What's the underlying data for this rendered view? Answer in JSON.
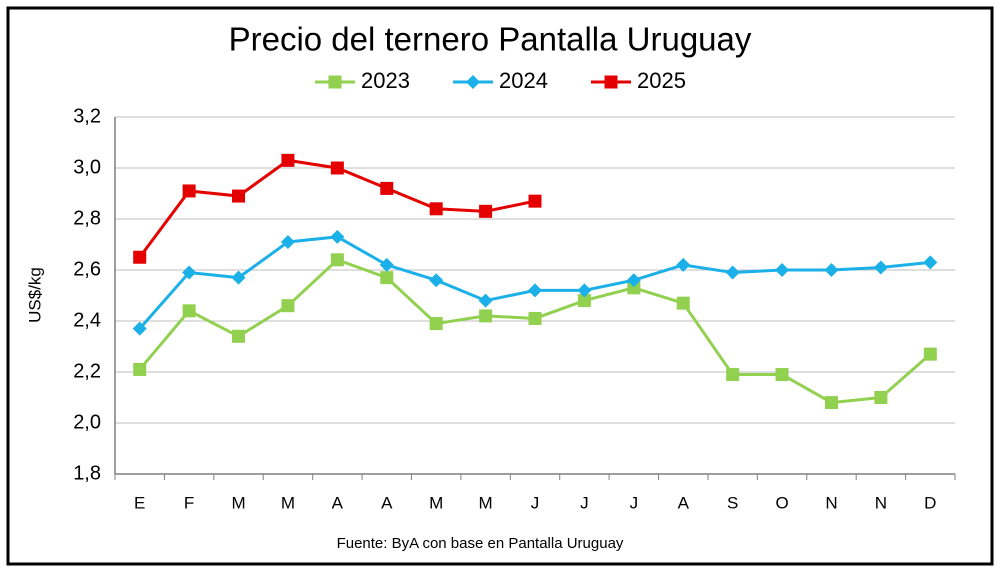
{
  "chart_data": {
    "type": "line",
    "title": "Precio del ternero Pantalla Uruguay",
    "y_label": "US$/kg",
    "source": "Fuente: ByA con base en Pantalla Uruguay",
    "categories": [
      "E",
      "F",
      "M",
      "M",
      "A",
      "A",
      "M",
      "M",
      "J",
      "J",
      "J",
      "A",
      "S",
      "O",
      "N",
      "N",
      "D"
    ],
    "series": [
      {
        "name": "2023",
        "color": "#92d050",
        "marker": "square",
        "values": [
          2.21,
          2.44,
          2.34,
          2.46,
          2.64,
          2.57,
          2.39,
          2.42,
          2.41,
          2.48,
          2.53,
          2.47,
          2.19,
          2.19,
          2.08,
          2.1,
          2.27
        ]
      },
      {
        "name": "2024",
        "color": "#1cb0e8",
        "marker": "diamond",
        "values": [
          2.37,
          2.59,
          2.57,
          2.71,
          2.73,
          2.62,
          2.56,
          2.48,
          2.52,
          2.52,
          2.56,
          2.62,
          2.59,
          2.6,
          2.6,
          2.61,
          2.63
        ]
      },
      {
        "name": "2025",
        "color": "#e50000",
        "marker": "square",
        "values": [
          2.65,
          2.91,
          2.89,
          3.03,
          3.0,
          2.92,
          2.84,
          2.83,
          2.87,
          null,
          null,
          null,
          null,
          null,
          null,
          null,
          null
        ]
      }
    ],
    "ylim": [
      1.8,
      3.2
    ],
    "yticks": [
      {
        "value": 1.8,
        "label": "1,8"
      },
      {
        "value": 2.0,
        "label": "2,0"
      },
      {
        "value": 2.2,
        "label": "2,2"
      },
      {
        "value": 2.4,
        "label": "2,4"
      },
      {
        "value": 2.6,
        "label": "2,6"
      },
      {
        "value": 2.8,
        "label": "2,8"
      },
      {
        "value": 3.0,
        "label": "3,0"
      },
      {
        "value": 3.2,
        "label": "3,2"
      }
    ],
    "grid": true,
    "legend": "top"
  }
}
